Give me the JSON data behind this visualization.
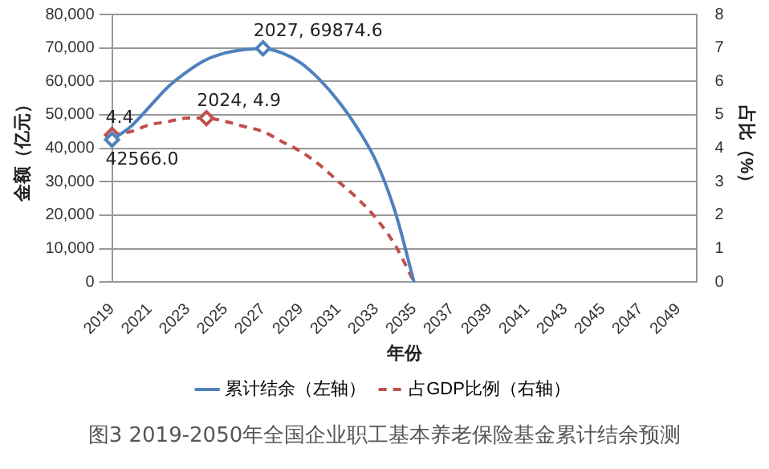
{
  "chart_data": {
    "type": "line",
    "title": "图3  2019-2050年全国企业职工基本养老保险基金累计结余预测",
    "xlabel": "年份",
    "ylabel": "金额（亿元）",
    "y2label": "占比（%）",
    "categories": [
      "2019",
      null,
      "2021",
      null,
      "2023",
      null,
      "2025",
      null,
      "2027",
      null,
      "2029",
      null,
      "2031",
      null,
      "2033",
      null,
      "2035",
      null,
      "2037",
      null,
      "2039",
      null,
      "2041",
      null,
      "2043",
      null,
      "2045",
      null,
      "2047",
      null,
      "2049",
      null
    ],
    "series": [
      {
        "name": "累计结余（左轴）",
        "color": "#4f81bd",
        "line_style": "solid",
        "values": [
          42566.0,
          46500,
          52500,
          58500,
          63000,
          66500,
          68500,
          69500,
          69874.6,
          68500,
          65500,
          60500,
          54000,
          46000,
          36000,
          21000,
          0,
          null,
          null,
          null,
          null,
          null,
          null,
          null,
          null,
          null,
          null,
          null,
          null,
          null,
          null,
          null
        ],
        "value_labels": [
          "42566.0",
          null,
          null,
          null,
          null,
          null,
          null,
          null,
          "2027, 69874.6",
          null,
          null,
          null,
          null,
          null,
          null,
          null,
          null,
          null,
          null,
          null,
          null,
          null,
          null,
          null,
          null,
          null,
          null,
          null,
          null,
          null,
          null,
          null
        ]
      },
      {
        "name": "占GDP比例（右轴）",
        "color": "#c0504d",
        "line_style": "dashed",
        "axis": "y2",
        "values": [
          4.4,
          4.5,
          4.7,
          4.8,
          4.9,
          4.9,
          4.8,
          4.65,
          4.5,
          4.2,
          3.9,
          3.5,
          3.0,
          2.5,
          1.9,
          1.1,
          0,
          null,
          null,
          null,
          null,
          null,
          null,
          null,
          null,
          null,
          null,
          null,
          null,
          null,
          null,
          null
        ],
        "value_labels": [
          "4.4",
          null,
          null,
          null,
          null,
          "2024, 4.9",
          null,
          null,
          null,
          null,
          null,
          null,
          null,
          null,
          null,
          null,
          null,
          null,
          null,
          null,
          null,
          null,
          null,
          null,
          null,
          null,
          null,
          null,
          null,
          null,
          null,
          null
        ]
      }
    ],
    "ylim": [
      0,
      80000
    ],
    "yticks": [
      0,
      {
        "value": 10000,
        "label": "10,000"
      },
      {
        "value": 20000,
        "label": "20,000"
      },
      {
        "value": 30000,
        "label": "30,000"
      },
      {
        "value": 40000,
        "label": "40,000"
      },
      {
        "value": 50000,
        "label": "50,000"
      },
      {
        "value": 60000,
        "label": "60,000"
      },
      {
        "value": 70000,
        "label": "70,000"
      },
      {
        "value": 80000,
        "label": "80,000"
      }
    ],
    "y2lim": [
      0,
      8
    ],
    "y2ticks": [
      0,
      1,
      2,
      3,
      4,
      5,
      6,
      7,
      8
    ],
    "grid": "y",
    "legend": "bottom"
  }
}
